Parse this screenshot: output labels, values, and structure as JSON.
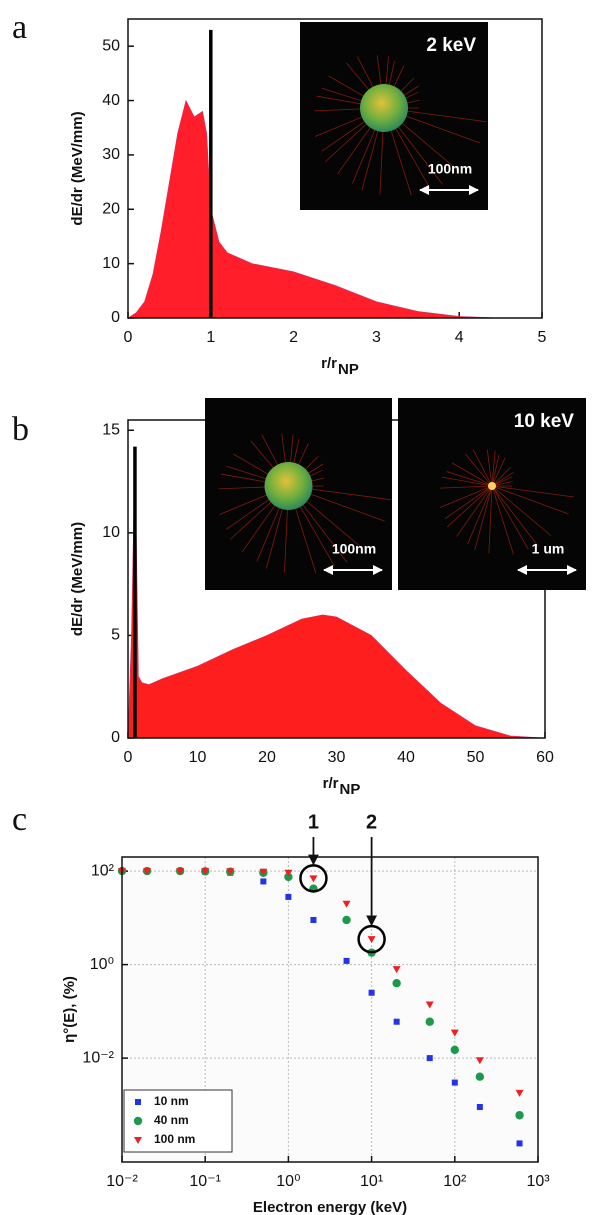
{
  "chart_data": [
    {
      "type": "area",
      "panel_label": "a",
      "y_label": "dE/dr (MeV/mm)",
      "x_label": "r/r",
      "x_label_sub": "NP",
      "x": [
        0,
        0.1,
        0.2,
        0.3,
        0.4,
        0.5,
        0.6,
        0.7,
        0.8,
        0.9,
        0.95,
        1.0,
        1.1,
        1.2,
        1.5,
        2.0,
        2.5,
        3.0,
        3.5,
        4.0,
        4.5,
        5
      ],
      "values": [
        0,
        1,
        3,
        8,
        16,
        25,
        34,
        40,
        37,
        38,
        34,
        20,
        14,
        12,
        10,
        8.5,
        6,
        3,
        1.2,
        0.3,
        0,
        0
      ],
      "color": "#ff1e2a",
      "xlim": [
        0,
        5
      ],
      "xticks": [
        0,
        1,
        2,
        3,
        4,
        5
      ],
      "ylim": [
        0,
        55
      ],
      "yticks": [
        0,
        10,
        20,
        30,
        40,
        50
      ],
      "reference_line": {
        "x": 1,
        "y": 53
      },
      "insets": [
        {
          "label": "2 keV",
          "scale_bar": "100nm"
        }
      ]
    },
    {
      "type": "area",
      "panel_label": "b",
      "y_label": "dE/dr (MeV/mm)",
      "x_label": "r/r",
      "x_label_sub": "NP",
      "x": [
        0,
        0.5,
        1,
        1.5,
        2,
        3,
        5,
        10,
        15,
        20,
        25,
        28,
        30,
        35,
        40,
        45,
        50,
        55,
        60
      ],
      "values": [
        0,
        5,
        14,
        3,
        2.7,
        2.6,
        2.9,
        3.5,
        4.3,
        5.0,
        5.8,
        6.0,
        5.9,
        5.0,
        3.3,
        1.7,
        0.6,
        0.1,
        0
      ],
      "color": "#ff1e1e",
      "xlim": [
        0,
        60
      ],
      "xticks": [
        0,
        10,
        20,
        30,
        40,
        50,
        60
      ],
      "ylim": [
        0,
        15.5
      ],
      "yticks": [
        0,
        5,
        10,
        15
      ],
      "reference_line": {
        "x": 1,
        "y": 14.2
      },
      "insets": [
        {
          "scale_bar": "100nm"
        },
        {
          "label": "10 keV",
          "scale_bar": "1 um"
        }
      ]
    },
    {
      "type": "scatter",
      "panel_label": "c",
      "y_label": "η°(E), (%)",
      "x_label": "Electron energy (keV)",
      "log_x": true,
      "log_y": true,
      "grid": true,
      "legend": "lower-left",
      "x": [
        0.01,
        0.02,
        0.05,
        0.1,
        0.2,
        0.5,
        1,
        2,
        5,
        10,
        20,
        50,
        100,
        200,
        600
      ],
      "series": [
        {
          "name": "10 nm",
          "color": "#2233e8",
          "marker": "square",
          "values": [
            100,
            100,
            99,
            97,
            92,
            60,
            28,
            9,
            1.2,
            0.25,
            0.06,
            0.01,
            0.003,
            0.0009,
            0.00015
          ]
        },
        {
          "name": "40 nm",
          "color": "#1a9a4a",
          "marker": "circle",
          "values": [
            100,
            100,
            100,
            99,
            97,
            92,
            75,
            42,
            9,
            1.8,
            0.4,
            0.06,
            0.015,
            0.004,
            0.0006
          ]
        },
        {
          "name": "100 nm",
          "color": "#f02020",
          "marker": "triangle-down",
          "values": [
            100,
            100,
            100,
            100,
            99,
            97,
            92,
            70,
            20,
            3.5,
            0.8,
            0.14,
            0.035,
            0.009,
            0.0018
          ]
        }
      ],
      "xlim": [
        0.01,
        1000
      ],
      "xticks": [
        {
          "value": 0.01,
          "label": "10⁻²"
        },
        {
          "value": 0.1,
          "label": "10⁻¹"
        },
        {
          "value": 1,
          "label": "10⁰"
        },
        {
          "value": 10,
          "label": "10¹"
        },
        {
          "value": 100,
          "label": "10²"
        },
        {
          "value": 1000,
          "label": "10³"
        }
      ],
      "ylim": [
        6e-05,
        200
      ],
      "yticks": [
        {
          "value": 0.01,
          "label": "10⁻²"
        },
        {
          "value": 1,
          "label": "10⁰"
        },
        {
          "value": 100,
          "label": "10²"
        }
      ],
      "annotations": [
        {
          "label": "1",
          "x": 2,
          "y": 70
        },
        {
          "label": "2",
          "x": 10,
          "y": 3.5
        }
      ]
    }
  ]
}
